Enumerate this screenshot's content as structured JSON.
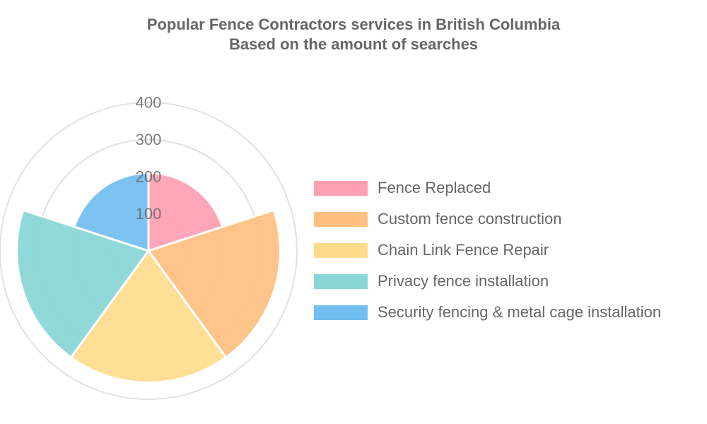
{
  "chart_data": {
    "type": "polarArea",
    "title": [
      "Popular Fence Contractors services in British Columbia",
      "Based on the amount of searches"
    ],
    "categories": [
      "Fence Replaced",
      "Custom fence construction",
      "Chain Link Fence Repair",
      "Privacy fence installation",
      "Security fencing & metal cage installation"
    ],
    "values": [
      210,
      355,
      355,
      355,
      210
    ],
    "colors": [
      "#ff9fb2",
      "#ffbf80",
      "#ffdc8c",
      "#88d6d6",
      "#72bef0"
    ],
    "rlim": [
      0,
      400
    ],
    "rticks": [
      100,
      200,
      300,
      400
    ],
    "rtick_labels": [
      "100",
      "200",
      "300",
      "400"
    ],
    "legend_position": "right",
    "grid": true
  }
}
